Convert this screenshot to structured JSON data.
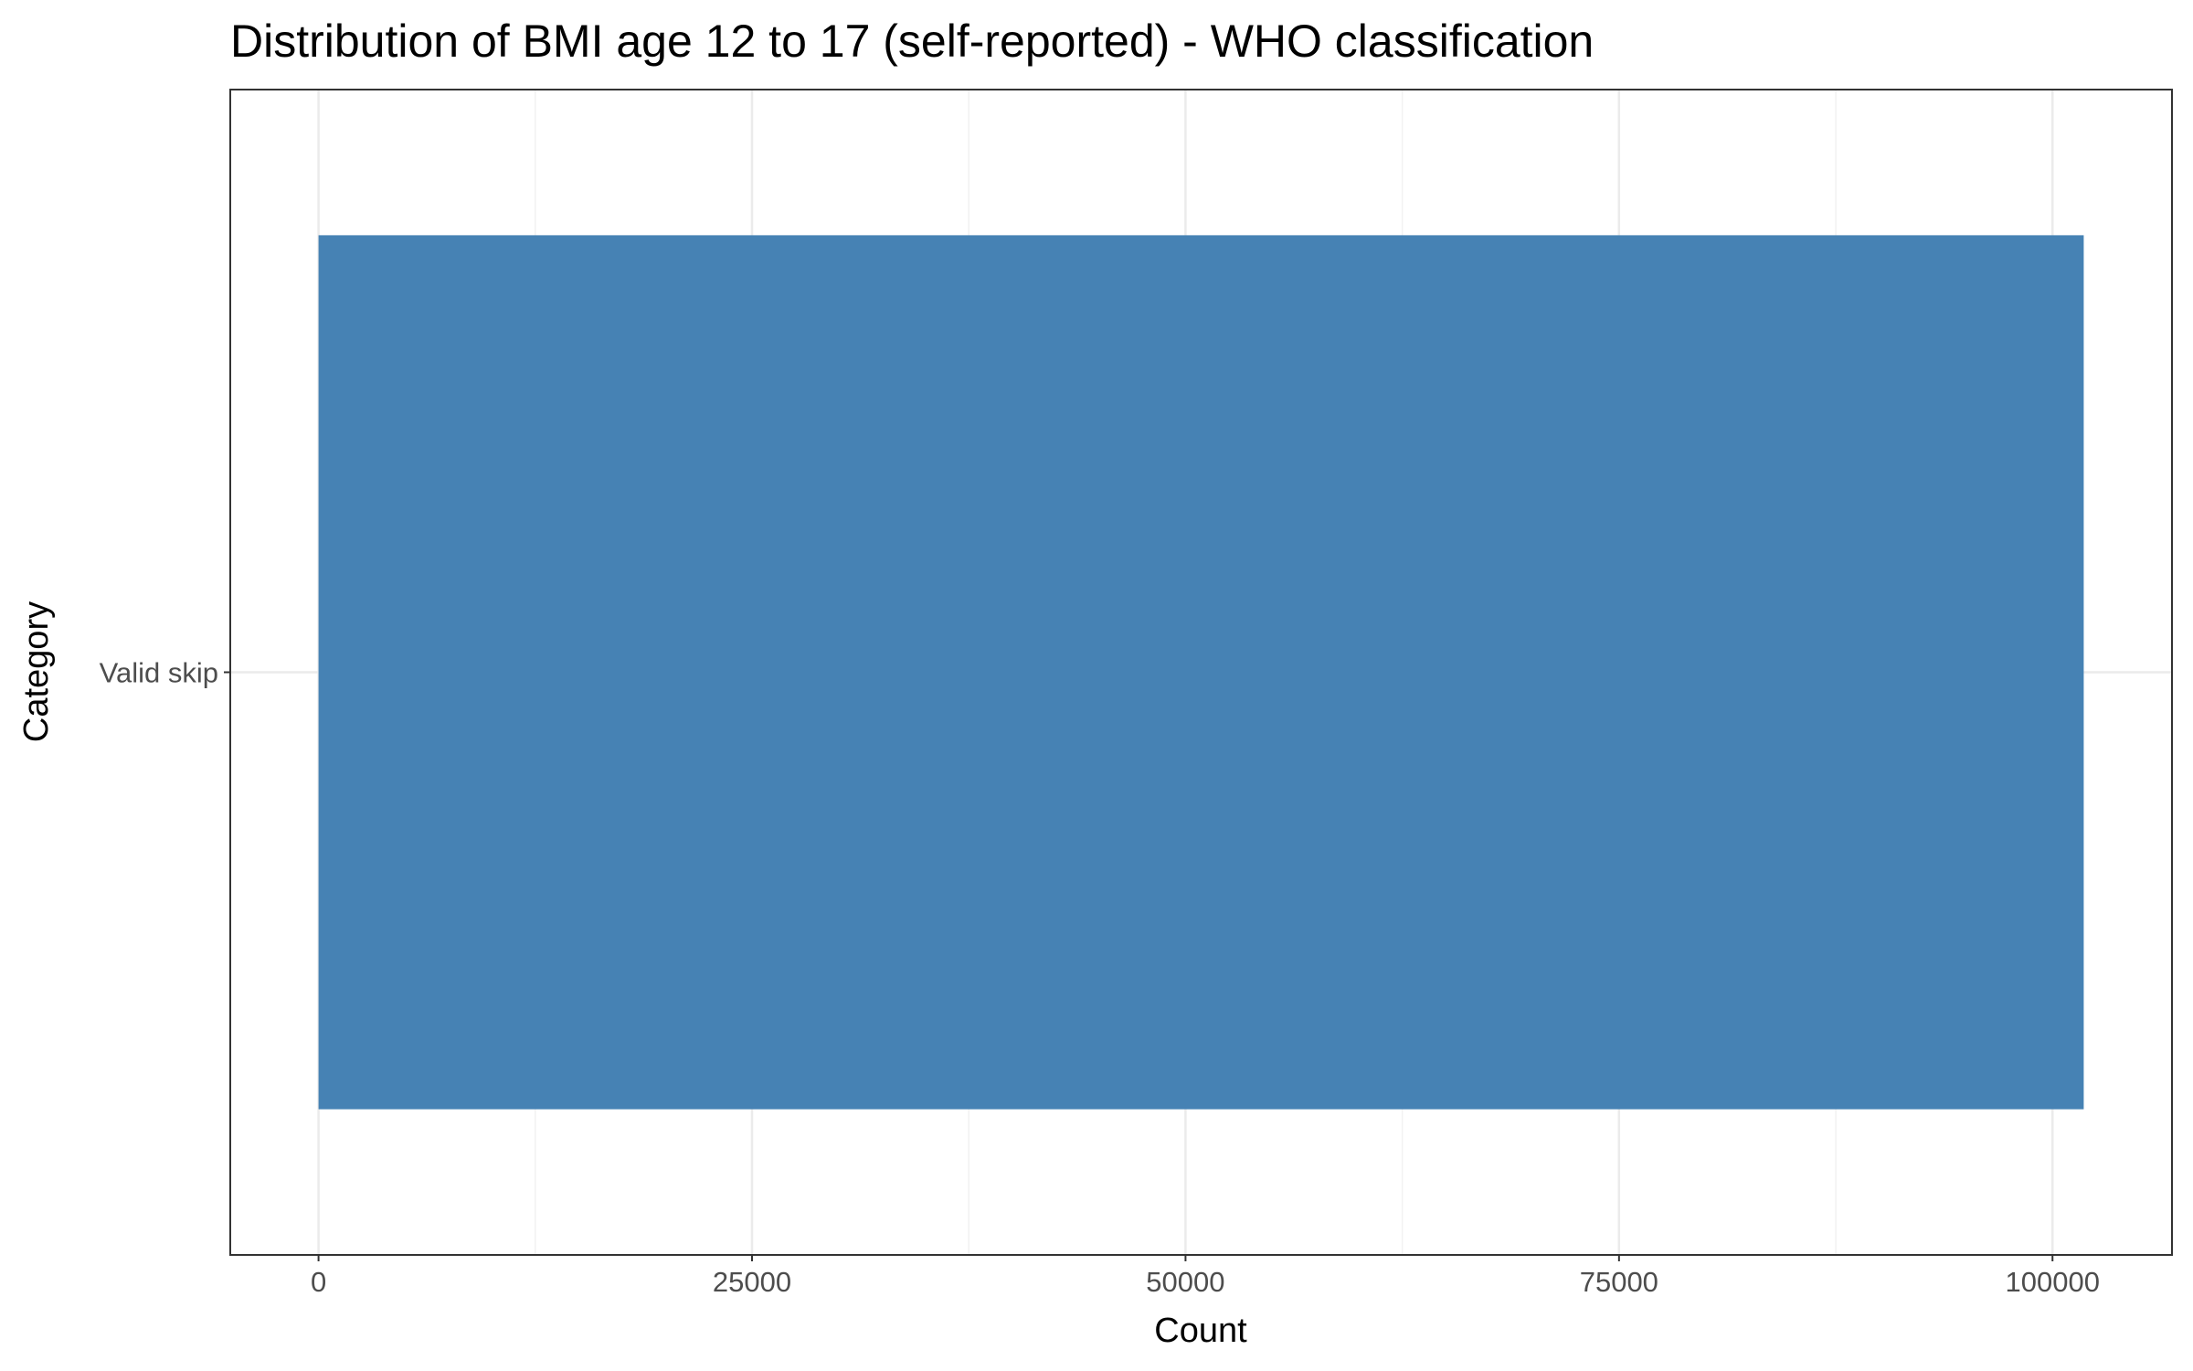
{
  "chart_data": {
    "type": "bar",
    "orientation": "horizontal",
    "title": "Distribution of BMI age 12 to 17 (self-reported) - WHO classification",
    "xlabel": "Count",
    "ylabel": "Category",
    "categories": [
      "Valid skip"
    ],
    "values": [
      101800
    ],
    "xlim": [
      -5090,
      106890
    ],
    "x_ticks": [
      0,
      25000,
      50000,
      75000,
      100000
    ],
    "x_tick_labels": [
      "0",
      "25000",
      "50000",
      "75000",
      "100000"
    ],
    "grid": true,
    "legend": "none",
    "colors": {
      "bar": "#4682b4",
      "grid_major": "#ebebeb",
      "grid_minor": "#f2f2f2",
      "panel_border": "#333333",
      "tick_text": "#4d4d4d"
    }
  }
}
